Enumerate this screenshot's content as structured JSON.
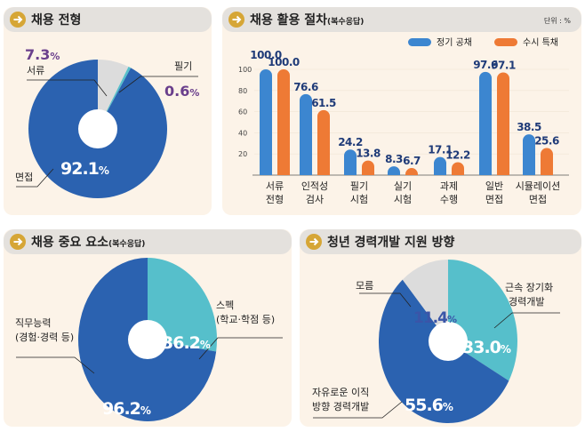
{
  "colors": {
    "blue": "#2b62b0",
    "teal": "#56bfcb",
    "gray": "#dcdcdc",
    "bar_blue": "#3c86d0",
    "bar_orange": "#ee7a35",
    "panel_bg": "#fcf3e8",
    "header_bg": "#e4e1dd",
    "icon": "#d6a636"
  },
  "chart_data": [
    {
      "type": "pie",
      "title": "채용 전형",
      "slices": [
        {
          "label": "서류",
          "value": 7.3,
          "display": "7.3",
          "color": "#dcdcdc"
        },
        {
          "label": "필기",
          "value": 0.6,
          "display": "0.6",
          "color": "#56bfcb"
        },
        {
          "label": "면접",
          "value": 92.1,
          "display": "92.1",
          "color": "#2b62b0"
        }
      ],
      "unit": "%"
    },
    {
      "type": "bar",
      "title": "채용 활용 절차",
      "subtitle": "(복수응답)",
      "unit_label": "단위 : %",
      "categories": [
        [
          "서류",
          "전형"
        ],
        [
          "인적성",
          "검사"
        ],
        [
          "필기",
          "시험"
        ],
        [
          "실기",
          "시험"
        ],
        [
          "과제",
          "수행"
        ],
        [
          "일반",
          "면접"
        ],
        [
          "시뮬레이션",
          "면접"
        ]
      ],
      "series": [
        {
          "name": "정기 공채",
          "color": "#3c86d0",
          "values": [
            100.0,
            76.6,
            24.2,
            8.3,
            17.1,
            97.6,
            38.5
          ]
        },
        {
          "name": "수시 특채",
          "color": "#ee7a35",
          "values": [
            100.0,
            61.5,
            13.8,
            6.7,
            12.2,
            97.1,
            25.6
          ]
        }
      ],
      "yticks": [
        20,
        40,
        60,
        80,
        100
      ],
      "ylim": [
        0,
        100
      ],
      "legend": "top-right"
    },
    {
      "type": "pie",
      "title": "채용 중요 요소",
      "subtitle": "(복수응답)",
      "slices": [
        {
          "label": "스펙",
          "label2": "(학교·학점 등)",
          "value": 36.2,
          "display": "36.2",
          "color": "#56bfcb"
        },
        {
          "label": "직무능력",
          "label2": "(경험·경력 등)",
          "value": 96.2,
          "display": "96.2",
          "color": "#2b62b0"
        }
      ],
      "unit": "%"
    },
    {
      "type": "pie",
      "title": "청년 경력개발 지원 방향",
      "slices": [
        {
          "label": "근속 장기화",
          "label2": "경력개발",
          "value": 33.0,
          "display": "33.0",
          "color": "#56bfcb"
        },
        {
          "label": "자유로운 이직",
          "label2": "방향 경력개발",
          "value": 55.6,
          "display": "55.6",
          "color": "#2b62b0"
        },
        {
          "label": "모름",
          "value": 11.4,
          "display": "11.4",
          "color": "#dcdcdc"
        }
      ],
      "unit": "%"
    }
  ]
}
